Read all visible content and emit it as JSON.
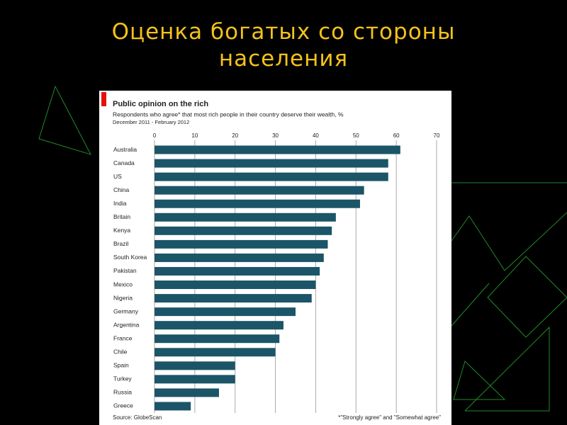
{
  "slide_title": "Оценка богатых со стороны населения",
  "chart_data": {
    "type": "bar",
    "orientation": "horizontal",
    "title": "Public opinion on the rich",
    "subtitle": "Respondents who agree* that most rich people in their country deserve their wealth, %",
    "period": "December 2011 - February 2012",
    "source": "Source: GlobeScan",
    "footnote": "*\"Strongly agree\" and \"Somewhat agree\"",
    "categories": [
      "Australia",
      "Canada",
      "US",
      "China",
      "India",
      "Britain",
      "Kenya",
      "Brazil",
      "South Korea",
      "Pakistan",
      "Mexico",
      "Nigeria",
      "Germany",
      "Argentina",
      "France",
      "Chile",
      "Spain",
      "Turkey",
      "Russia",
      "Greece"
    ],
    "values": [
      61,
      58,
      58,
      52,
      51,
      45,
      44,
      43,
      42,
      41,
      40,
      39,
      35,
      32,
      31,
      30,
      20,
      20,
      16,
      9
    ],
    "color": "#1b5567",
    "xlim": [
      0,
      70
    ],
    "xticks": [
      0,
      10,
      20,
      30,
      40,
      50,
      60,
      70
    ],
    "grid": true
  }
}
